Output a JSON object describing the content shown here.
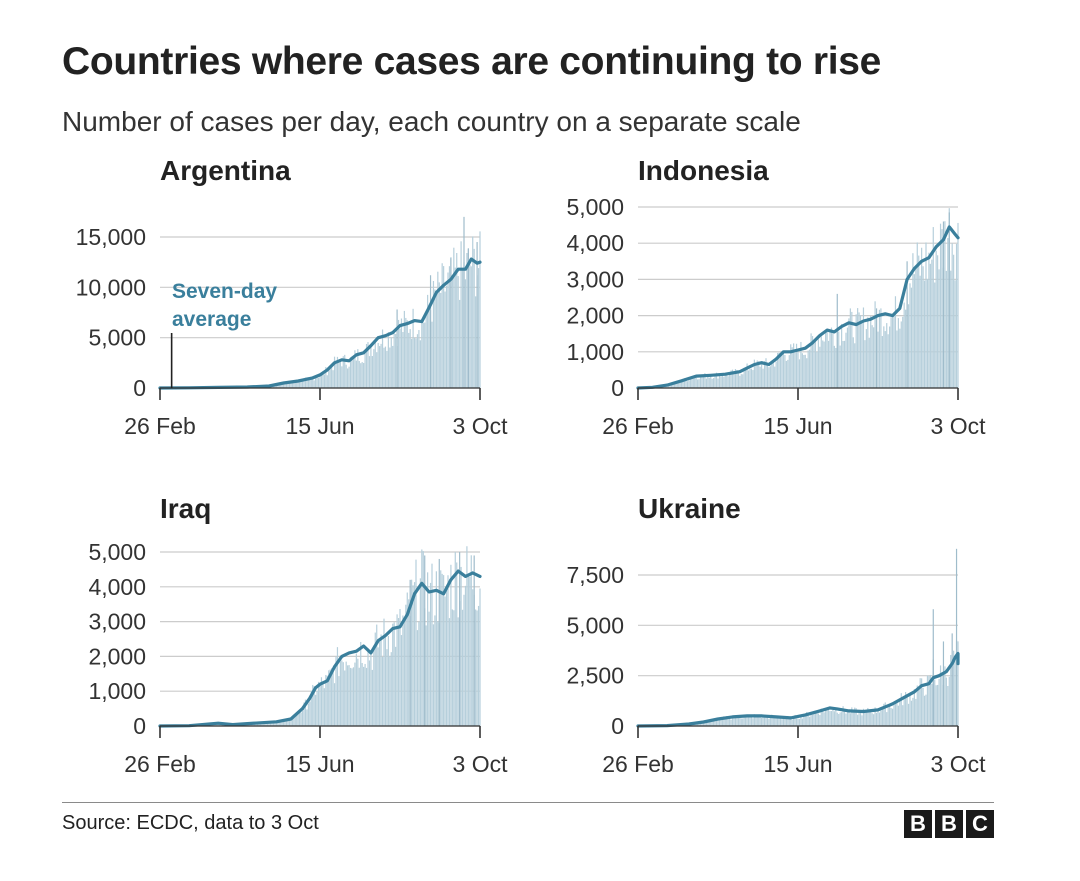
{
  "title": "Countries where cases are continuing to rise",
  "subtitle": "Number of cases per day, each country on a separate scale",
  "source": "Source: ECDC, data to 3 Oct",
  "logo": [
    "B",
    "B",
    "C"
  ],
  "colors": {
    "line": "#3a7f9c",
    "bars": "#b6cfdb",
    "grid": "#cccccc",
    "axis": "#333333",
    "annotation": "#3a7f9c"
  },
  "annotation": {
    "chart": 0,
    "lines": [
      "Seven-day",
      "average"
    ],
    "x_day": 8
  },
  "chart_data": [
    {
      "type": "bar",
      "title": "Argentina",
      "xlabel": "",
      "ylabel": "",
      "x_range_days": [
        0,
        220
      ],
      "ylim": [
        0,
        15000
      ],
      "y_ticks": [
        0,
        5000,
        10000,
        15000
      ],
      "y_tick_labels": [
        "0",
        "5,000",
        "10,000",
        "15,000"
      ],
      "x_tick_days": [
        0,
        110,
        220
      ],
      "x_tick_labels": [
        "26 Feb",
        "15 Jun",
        "3 Oct"
      ],
      "bars_start_day": 25,
      "avg_points": [
        [
          0,
          0
        ],
        [
          20,
          20
        ],
        [
          40,
          60
        ],
        [
          60,
          100
        ],
        [
          75,
          200
        ],
        [
          85,
          500
        ],
        [
          95,
          700
        ],
        [
          105,
          1000
        ],
        [
          110,
          1300
        ],
        [
          115,
          1800
        ],
        [
          120,
          2500
        ],
        [
          125,
          2800
        ],
        [
          130,
          2700
        ],
        [
          135,
          3300
        ],
        [
          140,
          3500
        ],
        [
          145,
          4200
        ],
        [
          150,
          5000
        ],
        [
          155,
          5200
        ],
        [
          160,
          5500
        ],
        [
          165,
          6200
        ],
        [
          170,
          6400
        ],
        [
          175,
          6700
        ],
        [
          180,
          6600
        ],
        [
          185,
          8000
        ],
        [
          190,
          9500
        ],
        [
          195,
          10200
        ],
        [
          200,
          10800
        ],
        [
          205,
          11800
        ],
        [
          210,
          11800
        ],
        [
          214,
          12800
        ],
        [
          218,
          12400
        ],
        [
          220,
          12500
        ]
      ],
      "spikes": [
        [
          163,
          7800
        ],
        [
          186,
          11200
        ],
        [
          200,
          12900
        ],
        [
          209,
          17000
        ],
        [
          212,
          13800
        ],
        [
          218,
          14500
        ]
      ]
    },
    {
      "type": "bar",
      "title": "Indonesia",
      "xlabel": "",
      "ylabel": "",
      "x_range_days": [
        0,
        220
      ],
      "ylim": [
        0,
        5000
      ],
      "y_ticks": [
        0,
        1000,
        2000,
        3000,
        4000,
        5000
      ],
      "y_tick_labels": [
        "0",
        "1,000",
        "2,000",
        "3,000",
        "4,000",
        "5,000"
      ],
      "x_tick_days": [
        0,
        110,
        220
      ],
      "x_tick_labels": [
        "26 Feb",
        "15 Jun",
        "3 Oct"
      ],
      "bars_start_day": 8,
      "avg_points": [
        [
          0,
          0
        ],
        [
          10,
          20
        ],
        [
          20,
          80
        ],
        [
          30,
          200
        ],
        [
          40,
          330
        ],
        [
          50,
          350
        ],
        [
          60,
          380
        ],
        [
          70,
          450
        ],
        [
          75,
          550
        ],
        [
          80,
          650
        ],
        [
          85,
          700
        ],
        [
          90,
          650
        ],
        [
          95,
          800
        ],
        [
          100,
          1000
        ],
        [
          105,
          1000
        ],
        [
          110,
          1050
        ],
        [
          115,
          1100
        ],
        [
          120,
          1250
        ],
        [
          125,
          1450
        ],
        [
          130,
          1600
        ],
        [
          135,
          1550
        ],
        [
          140,
          1700
        ],
        [
          145,
          1800
        ],
        [
          150,
          1750
        ],
        [
          155,
          1850
        ],
        [
          160,
          1900
        ],
        [
          165,
          2000
        ],
        [
          170,
          2050
        ],
        [
          175,
          2000
        ],
        [
          180,
          2200
        ],
        [
          185,
          3000
        ],
        [
          190,
          3300
        ],
        [
          195,
          3500
        ],
        [
          200,
          3600
        ],
        [
          205,
          3900
        ],
        [
          210,
          4100
        ],
        [
          214,
          4450
        ],
        [
          218,
          4250
        ],
        [
          220,
          4150
        ]
      ],
      "spikes": [
        [
          137,
          2600
        ],
        [
          164,
          2200
        ],
        [
          185,
          3500
        ],
        [
          210,
          4600
        ],
        [
          214,
          4850
        ]
      ]
    },
    {
      "type": "bar",
      "title": "Iraq",
      "xlabel": "",
      "ylabel": "",
      "x_range_days": [
        0,
        220
      ],
      "ylim": [
        0,
        5000
      ],
      "y_ticks": [
        0,
        1000,
        2000,
        3000,
        4000,
        5000
      ],
      "y_tick_labels": [
        "0",
        "1,000",
        "2,000",
        "3,000",
        "4,000",
        "5,000"
      ],
      "x_tick_days": [
        0,
        110,
        220
      ],
      "x_tick_labels": [
        "26 Feb",
        "15 Jun",
        "3 Oct"
      ],
      "bars_start_day": 5,
      "avg_points": [
        [
          0,
          0
        ],
        [
          20,
          10
        ],
        [
          40,
          80
        ],
        [
          50,
          40
        ],
        [
          60,
          70
        ],
        [
          80,
          120
        ],
        [
          90,
          200
        ],
        [
          98,
          500
        ],
        [
          103,
          800
        ],
        [
          107,
          1100
        ],
        [
          110,
          1200
        ],
        [
          115,
          1300
        ],
        [
          120,
          1700
        ],
        [
          125,
          2000
        ],
        [
          130,
          2100
        ],
        [
          135,
          2150
        ],
        [
          140,
          2300
        ],
        [
          145,
          2100
        ],
        [
          150,
          2450
        ],
        [
          155,
          2600
        ],
        [
          160,
          2800
        ],
        [
          165,
          2850
        ],
        [
          170,
          3200
        ],
        [
          175,
          3800
        ],
        [
          180,
          4100
        ],
        [
          185,
          3850
        ],
        [
          190,
          3900
        ],
        [
          195,
          3800
        ],
        [
          200,
          4200
        ],
        [
          205,
          4450
        ],
        [
          210,
          4300
        ],
        [
          215,
          4400
        ],
        [
          220,
          4300
        ]
      ],
      "spikes": [
        [
          172,
          4200
        ],
        [
          182,
          4900
        ],
        [
          192,
          4800
        ],
        [
          206,
          5000
        ],
        [
          216,
          4900
        ]
      ]
    },
    {
      "type": "bar",
      "title": "Ukraine",
      "xlabel": "",
      "ylabel": "",
      "x_range_days": [
        0,
        220
      ],
      "ylim": [
        0,
        8750
      ],
      "y_ticks": [
        0,
        2500,
        5000,
        7500
      ],
      "y_tick_labels": [
        "0",
        "2,500",
        "5,000",
        "7,500"
      ],
      "x_tick_days": [
        0,
        110,
        220
      ],
      "x_tick_labels": [
        "26 Feb",
        "15 Jun",
        "3 Oct"
      ],
      "bars_start_day": 25,
      "avg_points": [
        [
          0,
          0
        ],
        [
          20,
          20
        ],
        [
          35,
          100
        ],
        [
          45,
          200
        ],
        [
          55,
          350
        ],
        [
          65,
          450
        ],
        [
          75,
          500
        ],
        [
          85,
          500
        ],
        [
          95,
          450
        ],
        [
          105,
          400
        ],
        [
          115,
          550
        ],
        [
          125,
          750
        ],
        [
          132,
          900
        ],
        [
          137,
          850
        ],
        [
          145,
          750
        ],
        [
          155,
          720
        ],
        [
          165,
          800
        ],
        [
          175,
          1100
        ],
        [
          185,
          1500
        ],
        [
          190,
          1700
        ],
        [
          195,
          2000
        ],
        [
          200,
          2100
        ],
        [
          203,
          2400
        ],
        [
          207,
          2500
        ],
        [
          212,
          2700
        ],
        [
          216,
          3100
        ],
        [
          218,
          3400
        ],
        [
          220,
          3600
        ],
        [
          220,
          3100
        ]
      ],
      "spikes": [
        [
          203,
          3300
        ],
        [
          210,
          4200
        ],
        [
          203,
          5800
        ],
        [
          216,
          4600
        ],
        [
          219,
          8800
        ]
      ]
    }
  ]
}
